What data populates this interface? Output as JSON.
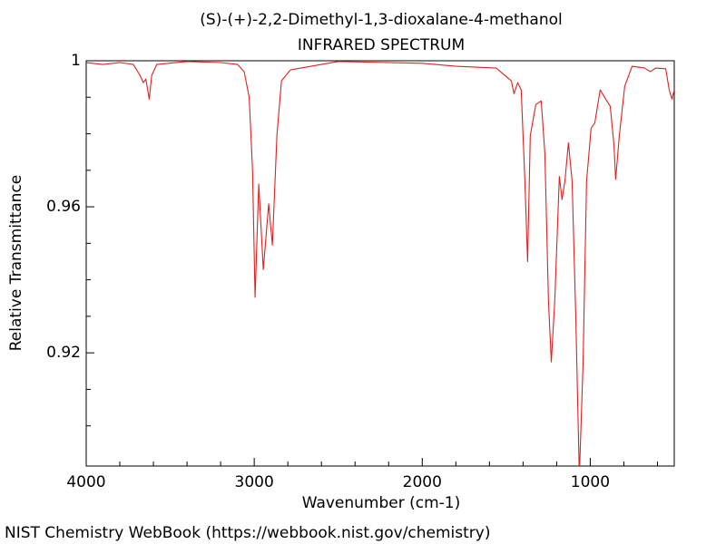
{
  "chart_data": {
    "type": "line",
    "title": "(S)-(+)-2,2-Dimethyl-1,3-dioxalane-4-methanol",
    "subtitle": "INFRARED SPECTRUM",
    "x_label": "Wavenumber (cm-1)",
    "y_label": "Relative Transmittance",
    "source": "NIST Chemistry WebBook (https://webbook.nist.gov/chemistry)",
    "xlim": [
      4000,
      500
    ],
    "ylim": [
      0.889,
      1
    ],
    "xticks": [
      4000,
      3000,
      2000,
      1000
    ],
    "yticks": [
      1,
      0.96,
      0.92
    ],
    "xminorticks": [
      3800,
      3600,
      3400,
      3200,
      2800,
      2600,
      2400,
      2200,
      1800,
      1600,
      1400,
      1200,
      800,
      600
    ],
    "yminorticks": [
      0.99,
      0.98,
      0.97,
      0.95,
      0.94,
      0.93,
      0.91,
      0.9
    ],
    "x": [
      4000,
      3900,
      3800,
      3720,
      3680,
      3660,
      3645,
      3625,
      3610,
      3580,
      3400,
      3200,
      3100,
      3060,
      3030,
      3010,
      2995,
      2973,
      2946,
      2914,
      2892,
      2865,
      2838,
      2784,
      2600,
      2500,
      2000,
      1800,
      1560,
      1470,
      1454,
      1432,
      1411,
      1389,
      1373,
      1357,
      1324,
      1292,
      1270,
      1249,
      1232,
      1211,
      1184,
      1168,
      1151,
      1130,
      1108,
      1086,
      1065,
      1043,
      1022,
      995,
      973,
      941,
      908,
      881,
      859,
      849,
      827,
      795,
      751,
      676,
      643,
      611,
      551,
      530,
      514,
      500
    ],
    "series": [
      {
        "name": "IR spectrum",
        "color": "#e02020",
        "values": [
          0.9995,
          0.999,
          0.9995,
          0.999,
          0.996,
          0.994,
          0.995,
          0.9895,
          0.996,
          0.999,
          0.9998,
          0.9995,
          0.999,
          0.997,
          0.99,
          0.97,
          0.9352,
          0.9662,
          0.9428,
          0.9608,
          0.9495,
          0.9795,
          0.9945,
          0.9975,
          0.999,
          0.9998,
          0.9993,
          0.9985,
          0.998,
          0.9945,
          0.991,
          0.994,
          0.992,
          0.967,
          0.945,
          0.9795,
          0.988,
          0.989,
          0.9745,
          0.9345,
          0.9175,
          0.9345,
          0.9683,
          0.962,
          0.967,
          0.9775,
          0.967,
          0.9295,
          0.886,
          0.917,
          0.967,
          0.9815,
          0.983,
          0.992,
          0.9895,
          0.9875,
          0.977,
          0.9675,
          0.9795,
          0.993,
          0.9985,
          0.998,
          0.997,
          0.998,
          0.9978,
          0.992,
          0.9895,
          0.992
        ]
      }
    ]
  }
}
